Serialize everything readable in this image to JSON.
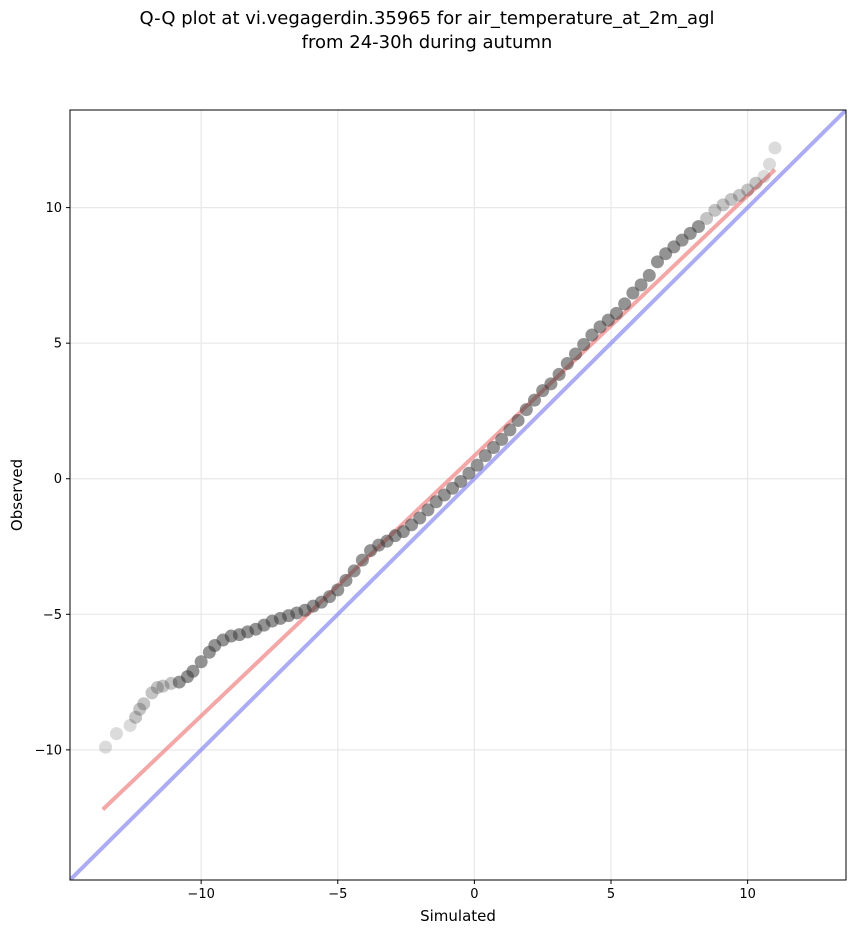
{
  "chart_data": {
    "type": "scatter",
    "title": "Q-Q plot at vi.vegagerdin.35965 for air_temperature_at_2m_agl",
    "subtitle": "from 24-30h during autumn",
    "xlabel": "Simulated",
    "ylabel": "Observed",
    "xlim": [
      -14.8,
      13.6
    ],
    "ylim": [
      -14.8,
      13.6
    ],
    "xticks": [
      -10,
      -5,
      0,
      5,
      10
    ],
    "yticks": [
      -10,
      -5,
      0,
      5,
      10
    ],
    "xtick_labels": [
      "−10",
      "−5",
      "0",
      "5",
      "10"
    ],
    "ytick_labels": [
      "−10",
      "−5",
      "0",
      "5",
      "10"
    ],
    "grid": true,
    "colors": {
      "points": "#3a3a3a",
      "identity_line": "#7f7ff0",
      "fit_line": "#f08a8a"
    },
    "quantile_points": {
      "x": [
        -13.5,
        -13.1,
        -12.6,
        -12.4,
        -12.25,
        -12.1,
        -11.8,
        -11.6,
        -11.4,
        -11.1,
        -10.8,
        -10.5,
        -10.3,
        -10.0,
        -9.7,
        -9.5,
        -9.2,
        -8.9,
        -8.6,
        -8.3,
        -8.0,
        -7.7,
        -7.4,
        -7.1,
        -6.8,
        -6.5,
        -6.2,
        -5.9,
        -5.6,
        -5.3,
        -5.0,
        -4.7,
        -4.4,
        -4.1,
        -3.8,
        -3.5,
        -3.2,
        -2.9,
        -2.6,
        -2.3,
        -2.0,
        -1.7,
        -1.4,
        -1.1,
        -0.8,
        -0.5,
        -0.2,
        0.1,
        0.4,
        0.7,
        1.0,
        1.3,
        1.6,
        1.9,
        2.2,
        2.5,
        2.8,
        3.1,
        3.4,
        3.7,
        4.0,
        4.3,
        4.6,
        4.9,
        5.2,
        5.5,
        5.8,
        6.1,
        6.4,
        6.7,
        7.0,
        7.3,
        7.6,
        7.9,
        8.2,
        8.5,
        8.8,
        9.1,
        9.4,
        9.7,
        10.0,
        10.3,
        10.6,
        10.8,
        11.0
      ],
      "y": [
        -9.9,
        -9.4,
        -9.1,
        -8.8,
        -8.5,
        -8.3,
        -7.9,
        -7.7,
        -7.65,
        -7.55,
        -7.5,
        -7.3,
        -7.1,
        -6.75,
        -6.4,
        -6.15,
        -5.95,
        -5.8,
        -5.75,
        -5.65,
        -5.55,
        -5.4,
        -5.25,
        -5.15,
        -5.05,
        -4.95,
        -4.85,
        -4.7,
        -4.55,
        -4.35,
        -4.1,
        -3.75,
        -3.4,
        -3.0,
        -2.65,
        -2.45,
        -2.3,
        -2.1,
        -1.95,
        -1.7,
        -1.45,
        -1.15,
        -0.85,
        -0.6,
        -0.35,
        -0.1,
        0.2,
        0.5,
        0.85,
        1.15,
        1.45,
        1.8,
        2.15,
        2.55,
        2.9,
        3.25,
        3.5,
        3.85,
        4.25,
        4.6,
        4.95,
        5.3,
        5.6,
        5.85,
        6.1,
        6.45,
        6.85,
        7.15,
        7.5,
        8.0,
        8.3,
        8.55,
        8.8,
        9.05,
        9.3,
        9.6,
        9.9,
        10.1,
        10.3,
        10.45,
        10.65,
        10.9,
        11.15,
        11.6,
        12.2
      ]
    },
    "identity_line": {
      "x": [
        -14.8,
        13.6
      ],
      "y": [
        -14.8,
        13.6
      ]
    },
    "fit_line": {
      "x": [
        -13.6,
        11.0
      ],
      "y": [
        -12.2,
        11.4
      ]
    }
  }
}
